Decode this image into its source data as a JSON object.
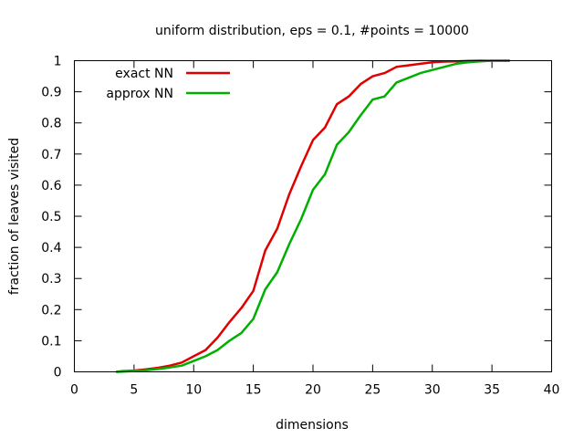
{
  "chart_data": {
    "type": "line",
    "title": "uniform distribution, eps = 0.1, #points = 10000",
    "xlabel": "dimensions",
    "ylabel": "fraction of leaves visited",
    "xlim": [
      0,
      40
    ],
    "ylim": [
      0,
      1
    ],
    "xticks": [
      0,
      5,
      10,
      15,
      20,
      25,
      30,
      35,
      40
    ],
    "xtick_labels": [
      "0",
      "5",
      "10",
      "15",
      "20",
      "25",
      "30",
      "35",
      "40"
    ],
    "yticks": [
      0,
      0.1,
      0.2,
      0.3,
      0.4,
      0.5,
      0.6,
      0.7,
      0.8,
      0.9,
      1
    ],
    "ytick_labels": [
      "0",
      "0.1",
      "0.2",
      "0.3",
      "0.4",
      "0.5",
      "0.6",
      "0.7",
      "0.8",
      "0.9",
      "1"
    ],
    "grid": false,
    "legend_position": "top-left",
    "series": [
      {
        "name": "exact NN",
        "color": "#e00000",
        "x": [
          3.5,
          4,
          5,
          6,
          7,
          8,
          9,
          10,
          11,
          12,
          13,
          14,
          15,
          16,
          17,
          18,
          19,
          20,
          21,
          22,
          23,
          24,
          25,
          26,
          27,
          28,
          29,
          30,
          31,
          32,
          33,
          34,
          35,
          36,
          36.5
        ],
        "y": [
          0.0,
          0.002,
          0.004,
          0.008,
          0.013,
          0.02,
          0.03,
          0.05,
          0.07,
          0.11,
          0.16,
          0.205,
          0.26,
          0.39,
          0.46,
          0.57,
          0.66,
          0.745,
          0.785,
          0.86,
          0.885,
          0.925,
          0.95,
          0.96,
          0.98,
          0.985,
          0.99,
          0.995,
          0.997,
          0.998,
          0.999,
          1.0,
          1.0,
          1.0,
          1.0
        ]
      },
      {
        "name": "approx NN",
        "color": "#00b000",
        "x": [
          3.5,
          4,
          5,
          6,
          7,
          8,
          9,
          10,
          11,
          12,
          13,
          14,
          15,
          16,
          17,
          18,
          19,
          20,
          21,
          22,
          23,
          24,
          25,
          26,
          27,
          28,
          29,
          30,
          31,
          32,
          33,
          34,
          35,
          36,
          36.5
        ],
        "y": [
          0.0,
          0.001,
          0.003,
          0.005,
          0.009,
          0.014,
          0.02,
          0.035,
          0.05,
          0.07,
          0.1,
          0.125,
          0.17,
          0.265,
          0.32,
          0.41,
          0.49,
          0.585,
          0.635,
          0.73,
          0.77,
          0.825,
          0.875,
          0.885,
          0.93,
          0.945,
          0.96,
          0.97,
          0.98,
          0.99,
          0.995,
          0.998,
          1.0,
          1.0,
          1.0
        ]
      }
    ]
  }
}
